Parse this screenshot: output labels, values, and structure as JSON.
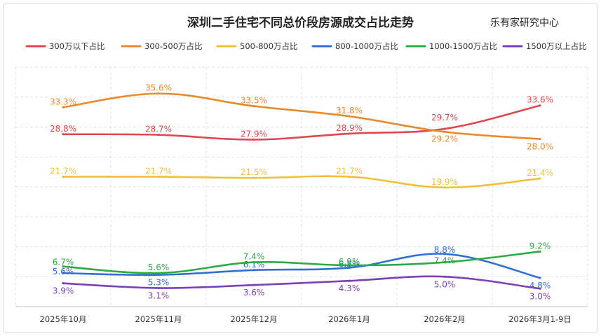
{
  "chart_data": {
    "type": "line",
    "title": "深圳二手住宅不同总价段房源成交占比走势",
    "source": "乐有家研究中心",
    "categories": [
      "2025年10月",
      "2025年11月",
      "2025年12月",
      "2026年1月",
      "2026年2月",
      "2026年3月1-9日"
    ],
    "ylim": [
      0,
      40
    ],
    "grid": true,
    "legend_position": "top",
    "series": [
      {
        "name": "300万以下占比",
        "color": "#e0474c",
        "values": [
          28.8,
          28.7,
          27.9,
          28.9,
          29.7,
          33.6
        ],
        "labels": [
          "28.8%",
          "28.7%",
          "27.9%",
          "28.9%",
          "29.7%",
          "33.6%"
        ]
      },
      {
        "name": "300-500万占比",
        "color": "#e8892a",
        "values": [
          33.3,
          35.6,
          33.5,
          31.8,
          29.2,
          28.0
        ],
        "labels": [
          "33.3%",
          "35.6%",
          "33.5%",
          "31.8%",
          "29.2%",
          "28.0%"
        ]
      },
      {
        "name": "500-800万占比",
        "color": "#f0c03a",
        "values": [
          21.7,
          21.7,
          21.5,
          21.7,
          19.9,
          21.4
        ],
        "labels": [
          "21.7%",
          "21.7%",
          "21.5%",
          "21.7%",
          "19.9%",
          "21.4%"
        ]
      },
      {
        "name": "800-1000万占比",
        "color": "#2f6fd6",
        "values": [
          5.6,
          5.3,
          6.1,
          6.5,
          8.8,
          4.8
        ],
        "labels": [
          "5.6%",
          "5.3%",
          "6.1%",
          "6.5%",
          "8.8%",
          "4.8%"
        ]
      },
      {
        "name": "1000-1500万占比",
        "color": "#2eaa45",
        "values": [
          6.7,
          5.6,
          7.4,
          6.9,
          7.4,
          9.2
        ],
        "labels": [
          "6.7%",
          "5.6%",
          "7.4%",
          "6.9%",
          "7.4%",
          "9.2%"
        ]
      },
      {
        "name": "1500万以上占比",
        "color": "#7b3fb8",
        "values": [
          3.9,
          3.1,
          3.6,
          4.3,
          5.0,
          3.0
        ],
        "labels": [
          "3.9%",
          "3.1%",
          "3.6%",
          "4.3%",
          "5.0%",
          "3.0%"
        ]
      }
    ]
  }
}
